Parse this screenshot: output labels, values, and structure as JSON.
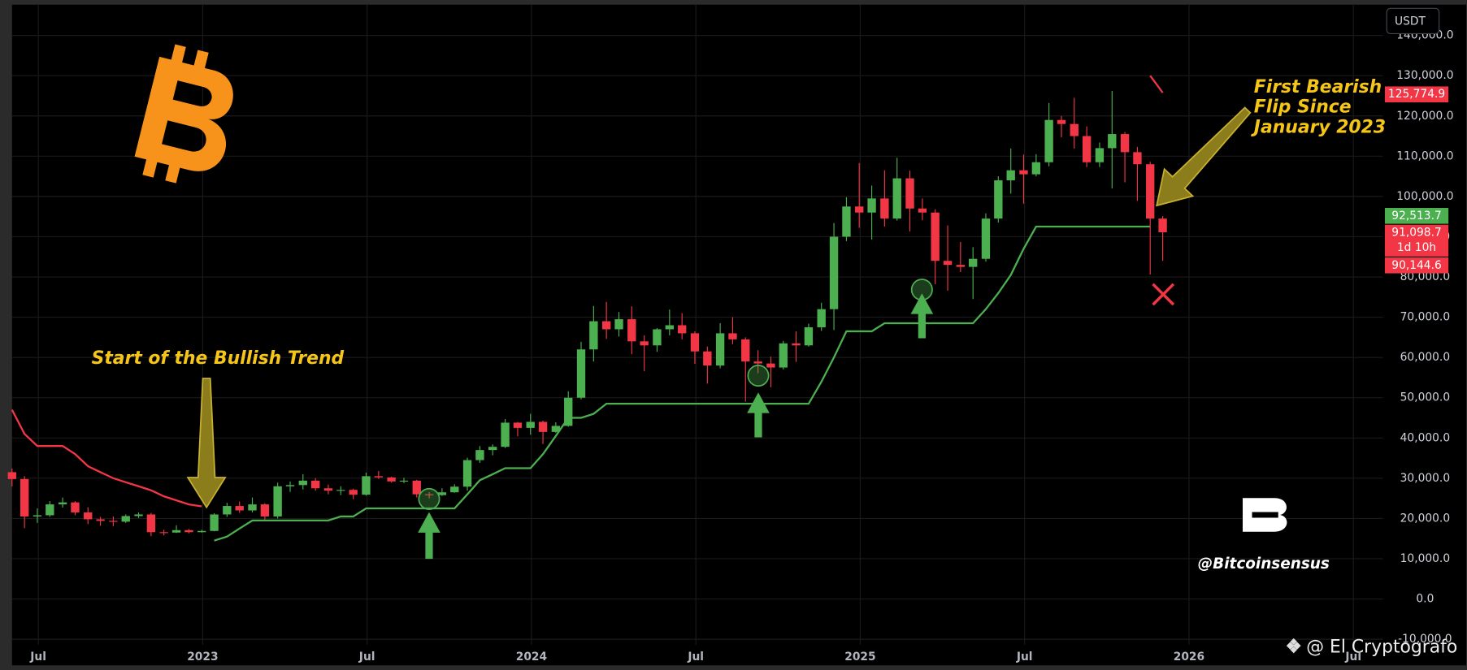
{
  "chart_data": {
    "type": "candlestick",
    "currency": "USDT",
    "up_color": "#4caf50",
    "down_color": "#f23645",
    "grid": true,
    "xlim": [
      2022.42,
      2026.59
    ],
    "ylim": [
      -11375,
      147640
    ],
    "xticks": [
      {
        "value": 2022.5,
        "label": "Jul"
      },
      2023,
      {
        "value": 2023.5,
        "label": "Jul"
      },
      2024,
      {
        "value": 2024.5,
        "label": "Jul"
      },
      2025,
      {
        "value": 2025.5,
        "label": "Jul"
      },
      2026,
      {
        "value": 2026.5,
        "label": "Jul"
      }
    ],
    "yticks": [
      {
        "value": -10000,
        "label": "-10,000.0"
      },
      {
        "value": 0,
        "label": "0.0"
      },
      {
        "value": 10000,
        "label": "10,000.0"
      },
      {
        "value": 20000,
        "label": "20,000.0"
      },
      {
        "value": 30000,
        "label": "30,000.0"
      },
      {
        "value": 40000,
        "label": "40,000.0"
      },
      {
        "value": 50000,
        "label": "50,000.0"
      },
      {
        "value": 60000,
        "label": "60,000.0"
      },
      {
        "value": 70000,
        "label": "70,000.0"
      },
      {
        "value": 80000,
        "label": "80,000.0"
      },
      {
        "value": 90000,
        "label": "90,000.0"
      },
      {
        "value": 100000,
        "label": "100,000.0"
      },
      {
        "value": 110000,
        "label": "110,000.0"
      },
      {
        "value": 120000,
        "label": "120,000.0"
      },
      {
        "value": 130000,
        "label": "130,000.0"
      },
      {
        "value": 140000,
        "label": "140,000.0"
      }
    ],
    "x": [
      2022.42,
      2022.458,
      2022.497,
      2022.535,
      2022.574,
      2022.612,
      2022.651,
      2022.689,
      2022.728,
      2022.766,
      2022.805,
      2022.843,
      2022.882,
      2022.92,
      2022.958,
      2022.997,
      2023.035,
      2023.074,
      2023.112,
      2023.151,
      2023.189,
      2023.228,
      2023.266,
      2023.305,
      2023.343,
      2023.382,
      2023.42,
      2023.458,
      2023.497,
      2023.535,
      2023.574,
      2023.612,
      2023.651,
      2023.689,
      2023.728,
      2023.766,
      2023.805,
      2023.843,
      2023.882,
      2023.92,
      2023.958,
      2023.997,
      2024.035,
      2024.074,
      2024.112,
      2024.151,
      2024.189,
      2024.228,
      2024.266,
      2024.305,
      2024.343,
      2024.382,
      2024.42,
      2024.458,
      2024.497,
      2024.535,
      2024.574,
      2024.612,
      2024.651,
      2024.689,
      2024.728,
      2024.766,
      2024.805,
      2024.843,
      2024.882,
      2024.92,
      2024.958,
      2024.997,
      2025.035,
      2025.074,
      2025.112,
      2025.151,
      2025.189,
      2025.228,
      2025.266,
      2025.305,
      2025.343,
      2025.382,
      2025.42,
      2025.458,
      2025.497,
      2025.535,
      2025.574,
      2025.612,
      2025.651,
      2025.689,
      2025.728,
      2025.766,
      2025.805,
      2025.843,
      2025.882,
      2025.92
    ],
    "open": [
      31500,
      29800,
      20500,
      20800,
      23500,
      24000,
      21500,
      19800,
      19400,
      19200,
      20600,
      21000,
      16600,
      16500,
      17100,
      16600,
      16900,
      21000,
      23100,
      22000,
      23500,
      20500,
      28000,
      28300,
      29400,
      27500,
      26900,
      27100,
      25900,
      30500,
      30200,
      29200,
      29400,
      26000,
      25800,
      26500,
      27900,
      34500,
      37000,
      37800,
      43800,
      42500,
      44000,
      41500,
      43000,
      50000,
      62000,
      69000,
      67000,
      69500,
      64000,
      63000,
      67000,
      68000,
      66000,
      61500,
      58000,
      66000,
      64500,
      59000,
      58500,
      57500,
      63500,
      63000,
      67500,
      72000,
      90000,
      97500,
      96000,
      99500,
      94500,
      104500,
      97000,
      96000,
      84000,
      83000,
      82500,
      84500,
      94500,
      104000,
      106500,
      105500,
      108500,
      119000,
      118000,
      115000,
      108500,
      112000,
      115500,
      111000,
      108000,
      94500
    ],
    "high": [
      32400,
      30500,
      22500,
      24300,
      25200,
      24300,
      22800,
      20400,
      20500,
      21000,
      21500,
      21400,
      17200,
      18300,
      17400,
      17200,
      21300,
      23900,
      24200,
      25200,
      23800,
      28900,
      29200,
      31000,
      30000,
      28400,
      28000,
      27400,
      31400,
      31800,
      30400,
      30100,
      29600,
      26500,
      27500,
      28500,
      35100,
      38000,
      38400,
      44700,
      44000,
      46000,
      44300,
      43900,
      51600,
      63900,
      72800,
      73800,
      71300,
      72700,
      65500,
      67300,
      71900,
      71000,
      66500,
      62700,
      68500,
      70000,
      65000,
      61800,
      60200,
      64100,
      66500,
      68400,
      73600,
      93400,
      99800,
      108300,
      102700,
      106500,
      109600,
      106400,
      99500,
      96800,
      92800,
      88700,
      87400,
      95800,
      105000,
      111900,
      110400,
      110500,
      123200,
      120000,
      124500,
      117400,
      113400,
      126200,
      116000,
      112300,
      108600,
      95100
    ],
    "low": [
      28000,
      17600,
      18900,
      20400,
      22700,
      20800,
      18600,
      18200,
      18100,
      18900,
      20100,
      15600,
      15800,
      16400,
      16300,
      16500,
      16800,
      20400,
      21400,
      21500,
      19600,
      20000,
      26600,
      27200,
      26900,
      26000,
      25800,
      24800,
      25700,
      29800,
      28900,
      28800,
      25200,
      25000,
      25600,
      26400,
      26900,
      33800,
      35700,
      37500,
      40400,
      40800,
      38500,
      41300,
      42800,
      49600,
      59000,
      64600,
      65200,
      60800,
      56600,
      61400,
      65500,
      64500,
      58400,
      53500,
      57300,
      63300,
      49000,
      56100,
      52600,
      57000,
      58900,
      62700,
      66600,
      66800,
      88900,
      92200,
      89300,
      92500,
      94000,
      91300,
      94100,
      78200,
      76600,
      81200,
      74500,
      83800,
      93500,
      100700,
      98200,
      105000,
      107500,
      114700,
      111900,
      107300,
      107300,
      102000,
      103500,
      98900,
      80600,
      84000
    ],
    "close": [
      29800,
      20500,
      20800,
      23500,
      24000,
      21500,
      19800,
      19400,
      19200,
      20600,
      21000,
      16600,
      16500,
      17100,
      16600,
      16900,
      21000,
      23100,
      22000,
      23500,
      20500,
      28000,
      28300,
      29400,
      27500,
      26900,
      27100,
      25900,
      30500,
      30200,
      29200,
      29400,
      26000,
      25800,
      26500,
      27900,
      34500,
      37000,
      37800,
      43800,
      42500,
      44000,
      41500,
      43000,
      50000,
      62000,
      69000,
      67000,
      69500,
      64000,
      63000,
      67000,
      68000,
      66000,
      61500,
      58000,
      66000,
      64500,
      59000,
      58500,
      57500,
      63500,
      63000,
      67500,
      72000,
      90000,
      97500,
      96000,
      99500,
      94500,
      104500,
      97000,
      96000,
      84000,
      83000,
      82500,
      84500,
      94500,
      104000,
      106500,
      105500,
      108500,
      119000,
      118000,
      115000,
      108500,
      112000,
      115500,
      111000,
      108000,
      94500,
      91100
    ],
    "supertrend": [
      {
        "color": "#f23645",
        "values": [
          47000,
          41000,
          38000,
          38000,
          38000,
          36000,
          33000,
          31500,
          30000,
          29000,
          28000,
          27000,
          25500,
          24500,
          23500,
          23000,
          null,
          null,
          null,
          null,
          null,
          null,
          null,
          null,
          null,
          null,
          null,
          null,
          null,
          null,
          null,
          null,
          null,
          null,
          null,
          null,
          null,
          null,
          null,
          null,
          null,
          null,
          null,
          null,
          null,
          null,
          null,
          null,
          null,
          null,
          null,
          null,
          null,
          null,
          null,
          null,
          null,
          null,
          null,
          null,
          null,
          null,
          null,
          null,
          null,
          null,
          null,
          null,
          null,
          null,
          null,
          null,
          null,
          null,
          null,
          null,
          null,
          null,
          null,
          null,
          null,
          null,
          null,
          null,
          null,
          null,
          null,
          null,
          null,
          null,
          130000,
          125774.9
        ]
      },
      {
        "color": "#4caf50",
        "values": [
          null,
          null,
          null,
          null,
          null,
          null,
          null,
          null,
          null,
          null,
          null,
          null,
          null,
          null,
          null,
          null,
          14500,
          15500,
          17500,
          19500,
          19500,
          19500,
          19500,
          19500,
          19500,
          19500,
          20500,
          20500,
          22500,
          22500,
          22500,
          22500,
          22500,
          22500,
          22500,
          22500,
          26000,
          29500,
          31000,
          32500,
          32500,
          32500,
          36000,
          40500,
          45000,
          45000,
          46000,
          48500,
          48500,
          48500,
          48500,
          48500,
          48500,
          48500,
          48500,
          48500,
          48500,
          48500,
          48500,
          48500,
          48500,
          48500,
          48500,
          48500,
          54000,
          60000,
          66500,
          66500,
          66500,
          68500,
          68500,
          68500,
          68500,
          68500,
          68500,
          68500,
          68500,
          72000,
          76000,
          80500,
          87000,
          92513.7,
          92513.7,
          92513.7,
          92513.7,
          92513.7,
          92513.7,
          92513.7,
          92513.7,
          92513.7,
          92513.7,
          null
        ]
      }
    ],
    "price_tags": [
      {
        "value": 125774.9,
        "label": "125,774.9",
        "color": "#f23645"
      },
      {
        "value": 92513.7,
        "label": "92,513.7",
        "color": "#4caf50"
      },
      {
        "value": 91098.7,
        "label": "91,098.7",
        "sublabel": "1d 10h",
        "color": "#f23645"
      },
      {
        "value": 90144.6,
        "label": "90,144.6",
        "color": "#f23645"
      }
    ],
    "annotations": {
      "bullish": "Start of the Bullish Trend",
      "bearish": [
        "First Bearish",
        "Flip Since",
        "January 2023"
      ],
      "handle": "@Bitcoinsensus",
      "watermark": "@ El Cryptografo"
    }
  }
}
